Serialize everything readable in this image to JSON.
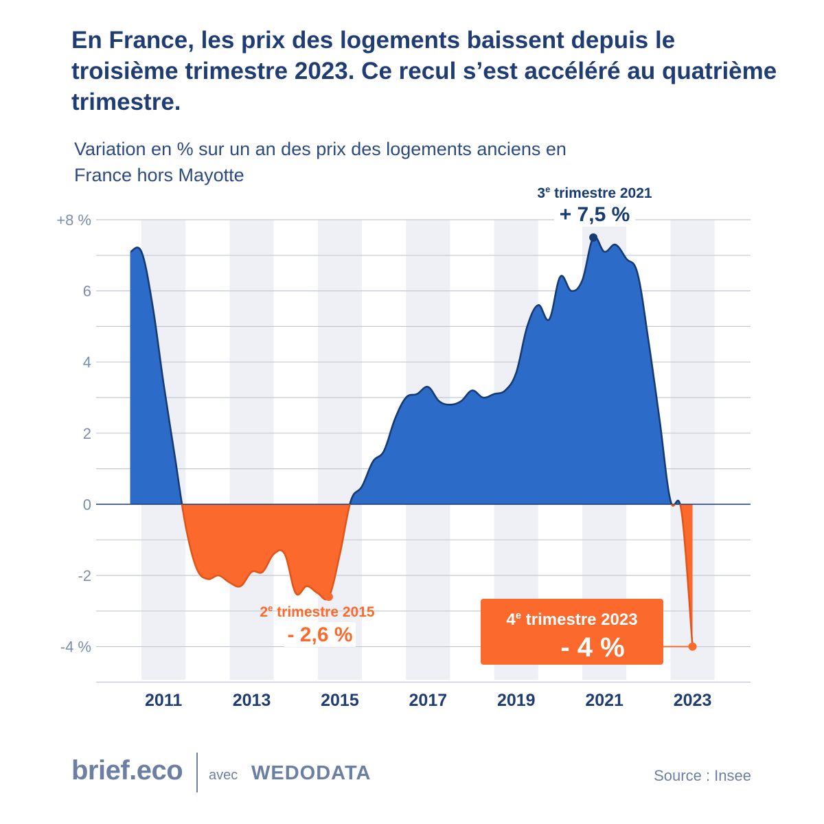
{
  "title": "En France, les prix des logements baissent depuis le troisième trimestre 2023. Ce recul s’est accéléré au quatrième trimestre.",
  "subtitle": "Variation en % sur un an des prix des logements anciens en France hors Mayotte",
  "colors": {
    "positive": "#2d6bc9",
    "negative": "#fb6a2c",
    "line": "#163a72",
    "band": "#eef0f6",
    "grid": "#c3c8d2",
    "tick": "#7c8cab",
    "year": "#1f3d73"
  },
  "chart_data": {
    "type": "area",
    "ylim": [
      -5,
      8
    ],
    "y_ticks": [
      {
        "value": 8,
        "label": "+8 %"
      },
      {
        "value": 6,
        "label": "6"
      },
      {
        "value": 4,
        "label": "4"
      },
      {
        "value": 2,
        "label": "2"
      },
      {
        "value": 0,
        "label": "0"
      },
      {
        "value": -2,
        "label": "-2"
      },
      {
        "value": -4,
        "label": "-4 %"
      }
    ],
    "x_ticks": [
      "2011",
      "2013",
      "2015",
      "2017",
      "2019",
      "2021",
      "2023"
    ],
    "series": [
      {
        "points": [
          [
            2010.75,
            7.1
          ],
          [
            2011.0,
            7.1
          ],
          [
            2011.25,
            5.6
          ],
          [
            2011.5,
            3.4
          ],
          [
            2011.75,
            1.4
          ],
          [
            2012.0,
            -0.6
          ],
          [
            2012.25,
            -1.8
          ],
          [
            2012.5,
            -2.1
          ],
          [
            2012.75,
            -2.0
          ],
          [
            2013.0,
            -2.2
          ],
          [
            2013.25,
            -2.3
          ],
          [
            2013.5,
            -1.9
          ],
          [
            2013.75,
            -1.9
          ],
          [
            2014.0,
            -1.4
          ],
          [
            2014.25,
            -1.4
          ],
          [
            2014.5,
            -2.5
          ],
          [
            2014.75,
            -2.3
          ],
          [
            2015.0,
            -2.5
          ],
          [
            2015.25,
            -2.6
          ],
          [
            2015.5,
            -1.4
          ],
          [
            2015.75,
            0.1
          ],
          [
            2016.0,
            0.5
          ],
          [
            2016.25,
            1.2
          ],
          [
            2016.5,
            1.5
          ],
          [
            2016.75,
            2.4
          ],
          [
            2017.0,
            3.0
          ],
          [
            2017.25,
            3.1
          ],
          [
            2017.5,
            3.3
          ],
          [
            2017.75,
            2.9
          ],
          [
            2018.0,
            2.8
          ],
          [
            2018.25,
            2.9
          ],
          [
            2018.5,
            3.2
          ],
          [
            2018.75,
            3.0
          ],
          [
            2019.0,
            3.1
          ],
          [
            2019.25,
            3.2
          ],
          [
            2019.5,
            3.7
          ],
          [
            2019.75,
            5.0
          ],
          [
            2020.0,
            5.6
          ],
          [
            2020.25,
            5.2
          ],
          [
            2020.5,
            6.4
          ],
          [
            2020.75,
            6.0
          ],
          [
            2021.0,
            6.3
          ],
          [
            2021.25,
            7.5
          ],
          [
            2021.5,
            7.1
          ],
          [
            2021.75,
            7.3
          ],
          [
            2022.0,
            6.9
          ],
          [
            2022.25,
            6.5
          ],
          [
            2022.5,
            4.6
          ],
          [
            2022.75,
            2.4
          ],
          [
            2023.0,
            0.1
          ],
          [
            2023.25,
            -0.2
          ],
          [
            2023.5,
            -4.0
          ]
        ]
      }
    ],
    "annotations": [
      {
        "id": "peak",
        "period": "3e trimestre 2021",
        "sup": "e",
        "label_pre": "3",
        "label_post": " trimestre 2021",
        "value_label": "+ 7,5 %",
        "x": 2021.25,
        "y": 7.5
      },
      {
        "id": "trough",
        "period": "2e trimestre 2015",
        "sup": "e",
        "label_pre": "2",
        "label_post": " trimestre 2015",
        "value_label": "- 2,6 %",
        "x": 2015.25,
        "y": -2.6
      },
      {
        "id": "last",
        "period": "4e trimestre 2023",
        "sup": "e",
        "label_pre": "4",
        "label_post": " trimestre 2023",
        "value_label": "- 4 %",
        "x": 2023.5,
        "y": -4.0
      }
    ]
  },
  "footer": {
    "brand": "brief.eco",
    "avec": "avec",
    "partner": "WEDODATA",
    "source": "Source : Insee"
  }
}
